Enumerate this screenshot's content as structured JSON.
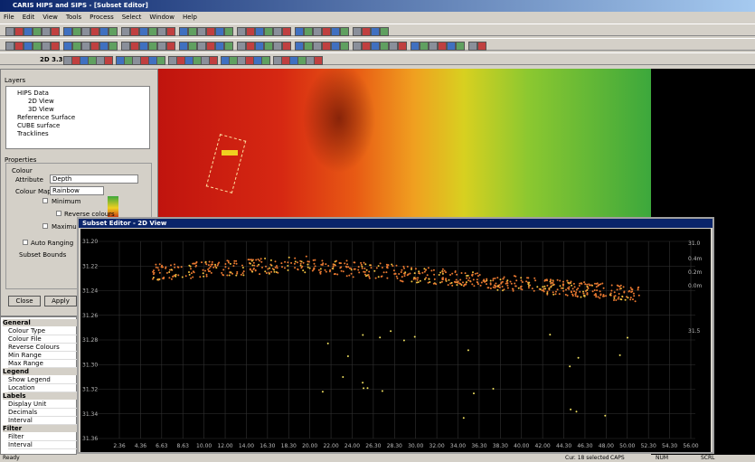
{
  "window": {
    "title": "CARIS HIPS and SIPS - [Subset Editor]"
  },
  "menu": [
    "File",
    "Edit",
    "View",
    "Tools",
    "Process",
    "Select",
    "Window",
    "Help"
  ],
  "toolbar": {
    "mode": "2D 3.3"
  },
  "layers_panel": {
    "title": "Layers",
    "items": [
      "HIPS Data",
      "2D View",
      "3D View",
      "Reference Surface",
      "CUBE surface",
      "Tracklines"
    ]
  },
  "properties_panel": {
    "title": "Properties",
    "colour_label": "Colour",
    "attribute_label": "Attribute",
    "attribute_value": "Depth",
    "colour_map_label": "Colour Map",
    "colour_map_value": "Rainbow",
    "minimum_label": "Minimum",
    "reverse_label": "Reverse colours",
    "maximum_label": "Maximum",
    "auto_label": "Auto Ranging",
    "subset_label": "Subset Bounds",
    "buttons": [
      "Close",
      "Apply"
    ]
  },
  "property_grid": {
    "sections": [
      {
        "name": "General",
        "rows": [
          "Colour Type",
          "Colour File",
          "Reverse Colours",
          "Min Range",
          "Max Range"
        ]
      },
      {
        "name": "Legend",
        "rows": [
          "Show Legend",
          "Location"
        ]
      },
      {
        "name": "Labels",
        "rows": [
          "Display Unit",
          "Decimals",
          "Interval"
        ]
      },
      {
        "name": "Filter",
        "rows": [
          "Filter",
          "Interval"
        ]
      }
    ]
  },
  "subset_editor": {
    "title": "Subset Editor - 2D View",
    "y_labels": [
      "31.20",
      "31.22",
      "31.24",
      "31.26",
      "31.28",
      "31.30",
      "31.32",
      "31.34",
      "31.36"
    ],
    "x_labels": [
      "2.36",
      "4.36",
      "6.63",
      "8.63",
      "10.00",
      "12.00",
      "14.00",
      "16.30",
      "18.30",
      "20.00",
      "22.00",
      "24.00",
      "26.30",
      "28.30",
      "30.00",
      "32.00",
      "34.00",
      "36.30",
      "38.30",
      "40.00",
      "42.00",
      "44.30",
      "46.30",
      "48.00",
      "50.00",
      "52.30",
      "54.30",
      "56.00"
    ],
    "right_labels": [
      "31.0",
      "0.4m",
      "0.2m",
      "0.0m",
      "31.5"
    ]
  },
  "status_bar": {
    "left": "Ready",
    "right": [
      "Cur. 18 selected",
      "CAPS",
      "NUM",
      "SCRL"
    ]
  }
}
